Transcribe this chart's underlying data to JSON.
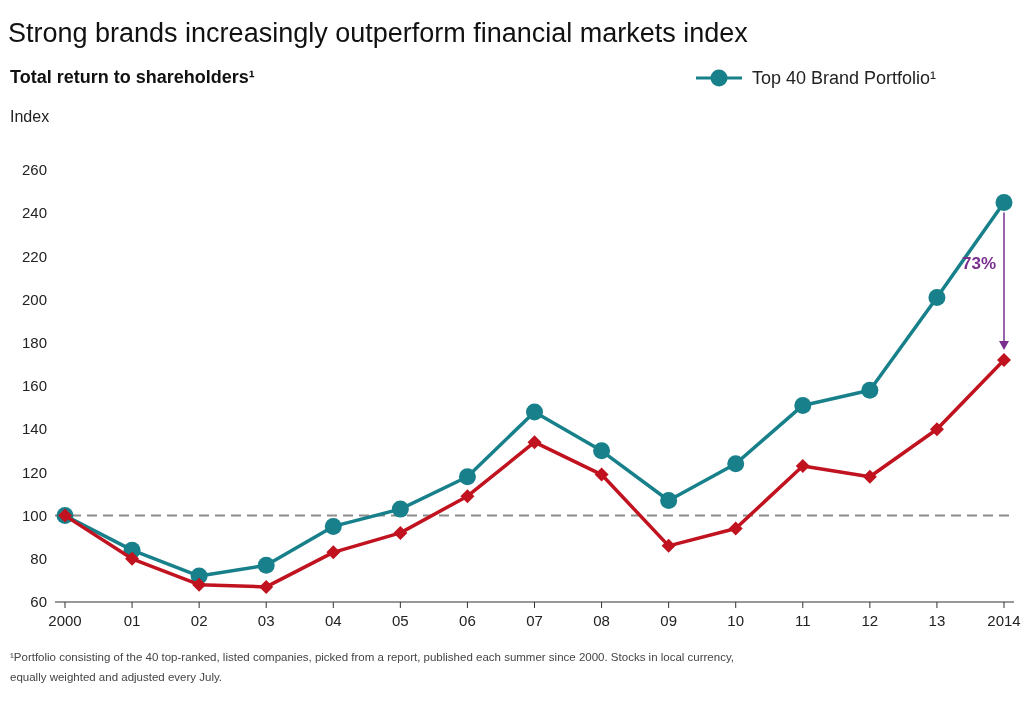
{
  "chart_data": {
    "type": "line",
    "title": "Strong brands increasingly outperform financial markets index",
    "subtitle": "Total return to shareholders¹",
    "ylabel": "Index",
    "categories": [
      "2000",
      "01",
      "02",
      "03",
      "04",
      "05",
      "06",
      "07",
      "08",
      "09",
      "10",
      "11",
      "12",
      "13",
      "2014"
    ],
    "series": [
      {
        "name": "Top 40 Brand Portfolio¹",
        "color": "#17808a",
        "marker": "circle",
        "values": [
          100,
          84,
          72,
          77,
          95,
          103,
          118,
          148,
          130,
          107,
          124,
          151,
          158,
          201,
          245
        ]
      },
      {
        "color": "#c0131f",
        "marker": "diamond",
        "values": [
          100,
          80,
          68,
          67,
          83,
          92,
          109,
          134,
          119,
          86,
          94,
          123,
          118,
          140,
          172
        ]
      }
    ],
    "ylim": [
      60,
      260
    ],
    "yticks": [
      60,
      80,
      100,
      120,
      140,
      160,
      180,
      200,
      220,
      240,
      260
    ],
    "grid": false,
    "legend": "top right",
    "line_style": "solid",
    "ref_lines": [
      {
        "axis": "y",
        "value": 100,
        "color": "#8c8c8c",
        "line_style": "dashed"
      }
    ],
    "annotations": [
      "73%",
      "¹Portfolio consisting of the 40 top-ranked, listed companies, picked from a report, published each summer since 2000. Stocks in local currency, equally weighted and adjusted every July."
    ]
  }
}
